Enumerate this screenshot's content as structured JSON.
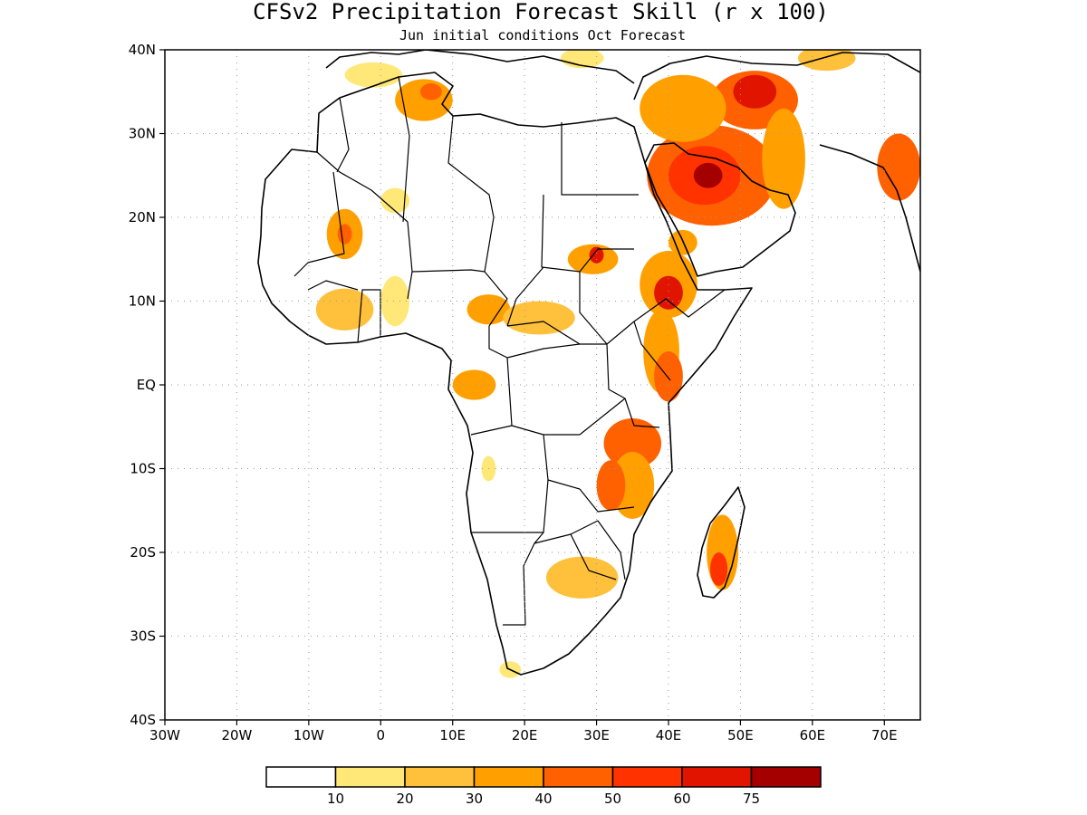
{
  "title": "CFSv2 Precipitation Forecast Skill (r x 100)",
  "subtitle": "Jun initial conditions  Oct Forecast",
  "map": {
    "lon_range": [
      -30,
      75
    ],
    "lat_range": [
      -40,
      40
    ],
    "grid": "dotted",
    "x_ticks": [
      {
        "lon": -30,
        "label": "30W"
      },
      {
        "lon": -20,
        "label": "20W"
      },
      {
        "lon": -10,
        "label": "10W"
      },
      {
        "lon": 0,
        "label": "0"
      },
      {
        "lon": 10,
        "label": "10E"
      },
      {
        "lon": 20,
        "label": "20E"
      },
      {
        "lon": 30,
        "label": "30E"
      },
      {
        "lon": 40,
        "label": "40E"
      },
      {
        "lon": 50,
        "label": "50E"
      },
      {
        "lon": 60,
        "label": "60E"
      },
      {
        "lon": 70,
        "label": "70E"
      }
    ],
    "y_ticks": [
      {
        "lat": 40,
        "label": "40N"
      },
      {
        "lat": 30,
        "label": "30N"
      },
      {
        "lat": 20,
        "label": "20N"
      },
      {
        "lat": 10,
        "label": "10N"
      },
      {
        "lat": 0,
        "label": "EQ"
      },
      {
        "lat": -10,
        "label": "10S"
      },
      {
        "lat": -20,
        "label": "20S"
      },
      {
        "lat": -30,
        "label": "30S"
      },
      {
        "lat": -40,
        "label": "40S"
      }
    ]
  },
  "colorbar": {
    "colors": [
      "#ffffff",
      "#ffe878",
      "#ffc03c",
      "#ffa000",
      "#ff6000",
      "#ff3200",
      "#e11400",
      "#a50000"
    ],
    "labels": [
      "10",
      "20",
      "30",
      "40",
      "50",
      "60",
      "75"
    ]
  },
  "skill_regions": [
    {
      "lon": 46,
      "lat": 25,
      "rx": 9,
      "ry": 6,
      "level": 4
    },
    {
      "lon": 45,
      "lat": 25,
      "rx": 5,
      "ry": 3.5,
      "level": 5
    },
    {
      "lon": 45.5,
      "lat": 25,
      "rx": 2,
      "ry": 1.5,
      "level": 7
    },
    {
      "lon": 52,
      "lat": 34,
      "rx": 6,
      "ry": 3.5,
      "level": 4
    },
    {
      "lon": 52,
      "lat": 35,
      "rx": 3,
      "ry": 2,
      "level": 6
    },
    {
      "lon": 42,
      "lat": 33,
      "rx": 6,
      "ry": 4,
      "level": 3
    },
    {
      "lon": 56,
      "lat": 27,
      "rx": 3,
      "ry": 6,
      "level": 3
    },
    {
      "lon": 72,
      "lat": 26,
      "rx": 3,
      "ry": 4,
      "level": 4
    },
    {
      "lon": 40,
      "lat": 12,
      "rx": 4,
      "ry": 4,
      "level": 3
    },
    {
      "lon": 40,
      "lat": 11,
      "rx": 2,
      "ry": 2,
      "level": 6
    },
    {
      "lon": 39,
      "lat": 4,
      "rx": 2.5,
      "ry": 5,
      "level": 3
    },
    {
      "lon": 40,
      "lat": 1,
      "rx": 2,
      "ry": 3,
      "level": 4
    },
    {
      "lon": 35,
      "lat": -7,
      "rx": 4,
      "ry": 3,
      "level": 4
    },
    {
      "lon": 35,
      "lat": -12,
      "rx": 3,
      "ry": 4,
      "level": 3
    },
    {
      "lon": 32,
      "lat": -12,
      "rx": 2,
      "ry": 3,
      "level": 4
    },
    {
      "lon": 47.5,
      "lat": -20,
      "rx": 2.2,
      "ry": 4.5,
      "level": 3
    },
    {
      "lon": 47,
      "lat": -22,
      "rx": 1.2,
      "ry": 2,
      "level": 5
    },
    {
      "lon": 28,
      "lat": -23,
      "rx": 5,
      "ry": 2.5,
      "level": 2
    },
    {
      "lon": 29.5,
      "lat": 15,
      "rx": 3.5,
      "ry": 1.8,
      "level": 3
    },
    {
      "lon": 30,
      "lat": 15.5,
      "rx": 1,
      "ry": 1,
      "level": 6
    },
    {
      "lon": 15,
      "lat": 9,
      "rx": 3,
      "ry": 1.8,
      "level": 3
    },
    {
      "lon": 22,
      "lat": 8,
      "rx": 5,
      "ry": 2,
      "level": 2
    },
    {
      "lon": 13,
      "lat": 0,
      "rx": 3,
      "ry": 1.8,
      "level": 3
    },
    {
      "lon": -5,
      "lat": 18,
      "rx": 2.5,
      "ry": 3,
      "level": 3
    },
    {
      "lon": -5,
      "lat": 18,
      "rx": 1,
      "ry": 1.2,
      "level": 4
    },
    {
      "lon": -5,
      "lat": 9,
      "rx": 4,
      "ry": 2.5,
      "level": 2
    },
    {
      "lon": 2,
      "lat": 10,
      "rx": 2,
      "ry": 3,
      "level": 1
    },
    {
      "lon": 6,
      "lat": 34,
      "rx": 4,
      "ry": 2.5,
      "level": 3
    },
    {
      "lon": 7,
      "lat": 35,
      "rx": 1.5,
      "ry": 1,
      "level": 4
    },
    {
      "lon": 15,
      "lat": -10,
      "rx": 1,
      "ry": 1.5,
      "level": 1
    },
    {
      "lon": 2,
      "lat": 22,
      "rx": 2,
      "ry": 1.5,
      "level": 1
    },
    {
      "lon": 42,
      "lat": 17,
      "rx": 2,
      "ry": 1.5,
      "level": 3
    },
    {
      "lon": 18,
      "lat": -34,
      "rx": 1.5,
      "ry": 1,
      "level": 1
    },
    {
      "lon": -1,
      "lat": 37,
      "rx": 4,
      "ry": 1.5,
      "level": 1
    },
    {
      "lon": 28,
      "lat": 39,
      "rx": 3,
      "ry": 1.2,
      "level": 1
    },
    {
      "lon": 62,
      "lat": 39,
      "rx": 4,
      "ry": 1.5,
      "level": 2
    }
  ]
}
